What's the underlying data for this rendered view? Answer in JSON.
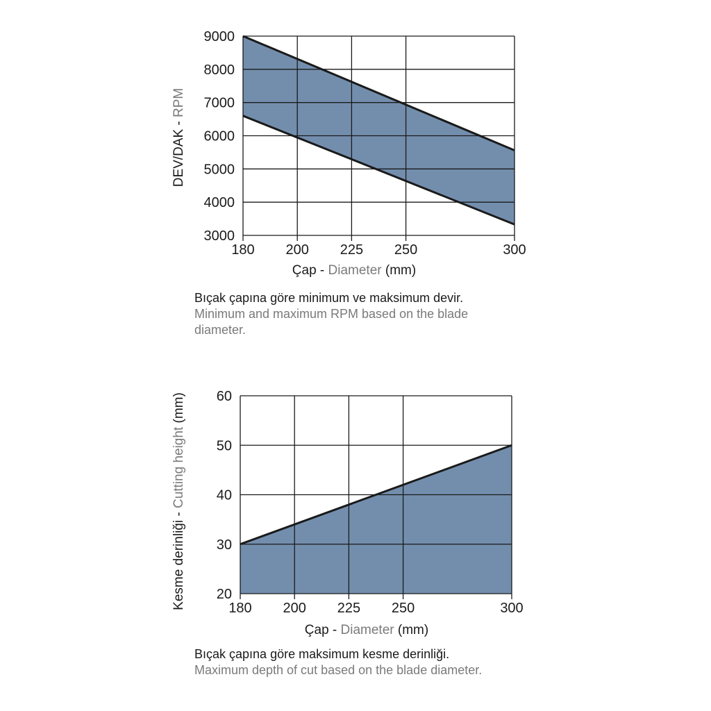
{
  "colors": {
    "fill": "#738ead",
    "line": "#1a1a1a",
    "grid": "#1a1a1a",
    "secondary_text": "#7a7a7a"
  },
  "chart_data": [
    {
      "type": "area",
      "x_tick_labels": [
        "180",
        "200",
        "225",
        "250",
        "300"
      ],
      "x_positions": [
        180,
        205,
        230,
        255,
        305
      ],
      "y_ticks": [
        3000,
        4000,
        5000,
        6000,
        7000,
        8000,
        9000
      ],
      "xlim": [
        180,
        305
      ],
      "ylim": [
        3000,
        9000
      ],
      "series": [
        {
          "name": "max",
          "x": [
            180,
            305
          ],
          "values": [
            9000,
            5560
          ]
        },
        {
          "name": "min",
          "x": [
            180,
            305
          ],
          "values": [
            6600,
            3330
          ]
        }
      ],
      "ylabel_tr": "DEV/DAK -",
      "ylabel_en": "RPM",
      "xlabel_tr": "Çap -",
      "xlabel_en": "Diameter",
      "xlabel_unit": "(mm)",
      "caption_tr": "Bıçak çapına göre minimum ve maksimum devir.",
      "caption_en": "Minimum and maximum RPM based on the blade diameter.",
      "grid": true
    },
    {
      "type": "area",
      "x_tick_labels": [
        "180",
        "200",
        "225",
        "250",
        "300"
      ],
      "x_positions": [
        180,
        205,
        230,
        255,
        305
      ],
      "y_ticks": [
        20,
        30,
        40,
        50,
        60
      ],
      "xlim": [
        180,
        305
      ],
      "ylim": [
        20,
        60
      ],
      "series": [
        {
          "name": "max",
          "x": [
            180,
            305
          ],
          "values": [
            30,
            50
          ]
        }
      ],
      "ylabel_tr": "Kesme derinliği -",
      "ylabel_en": "Cutting height",
      "ylabel_unit": "(mm)",
      "xlabel_tr": "Çap -",
      "xlabel_en": "Diameter",
      "xlabel_unit": "(mm)",
      "caption_tr": "Bıçak çapına göre maksimum kesme derinliği.",
      "caption_en": "Maximum depth of cut based on the blade diameter.",
      "grid": true
    }
  ]
}
